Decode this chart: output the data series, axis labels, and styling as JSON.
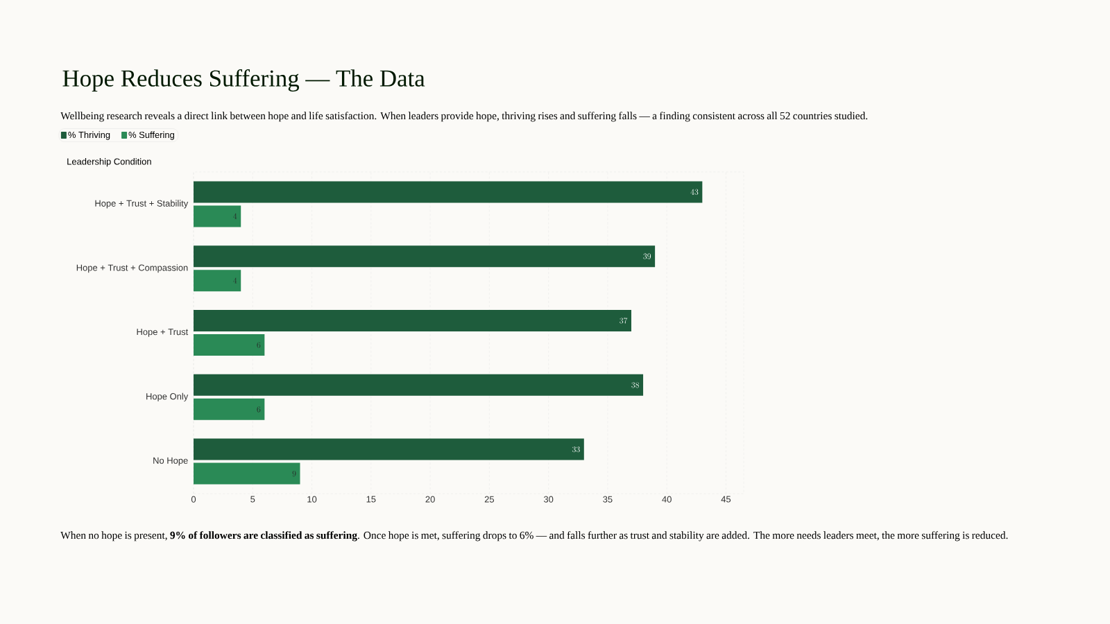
{
  "chart_data": {
    "type": "bar",
    "orientation": "horizontal",
    "title": "Hope Reduces Suffering — The Data",
    "subtitle": "Wellbeing research reveals a direct link between hope and life satisfaction. When leaders provide hope, thriving rises and suffering falls — a finding consistent across all 52 countries studied.",
    "ylabel": "Leadership Condition",
    "categories": [
      "Hope + Trust + Stability",
      "Hope + Trust + Compassion",
      "Hope + Trust",
      "Hope Only",
      "No Hope"
    ],
    "series": [
      {
        "name": "% Thriving",
        "color": "#1e5c3c",
        "values": [
          43,
          39,
          37,
          38,
          33
        ]
      },
      {
        "name": "% Suffering",
        "color": "#2a8a56",
        "values": [
          4,
          4,
          6,
          6,
          9
        ]
      }
    ],
    "xlim": [
      0,
      46.5
    ],
    "xticks": [
      0,
      5,
      10,
      15,
      20,
      25,
      30,
      35,
      40,
      45
    ],
    "grid": "x",
    "legend": "top left",
    "data_labels": true,
    "annotations": [
      "When no hope is present, **9% of followers are classified as suffering**. Once hope is met, suffering drops to 6% — and falls further as trust and stability are added. The more needs leaders meet, the more suffering is reduced."
    ]
  }
}
